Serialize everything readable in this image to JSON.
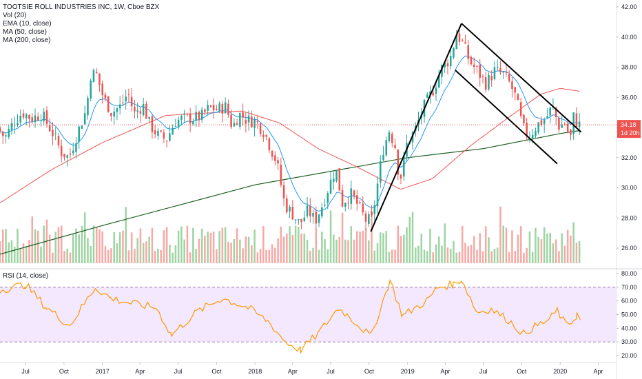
{
  "chart_data": [
    {
      "type": "candlestick",
      "title": "TOOTSIE ROLL INDUSTRIES INC, 1W, Cboe BZX",
      "legend": [
        "Vol (20)",
        "EMA (10, close)",
        "MA (50, close)",
        "MA (200, close)"
      ],
      "price_axis": {
        "ticks": [
          "42.00",
          "40.00",
          "38.00",
          "36.00",
          "34.00",
          "32.00",
          "30.00",
          "28.00",
          "26.00"
        ],
        "range": [
          25.0,
          42.0
        ],
        "last_price": "34.18",
        "countdown": "1d 20h"
      },
      "time_axis": {
        "ticks": [
          "Jul",
          "Oct",
          "2017",
          "Apr",
          "Jul",
          "Oct",
          "2018",
          "Apr",
          "Jul",
          "Oct",
          "2019",
          "Apr",
          "Jul",
          "Oct",
          "2020",
          "Apr"
        ],
        "range": [
          "2016-05",
          "2020-04"
        ]
      },
      "colors": {
        "up": "#26a69a",
        "down": "#ef5350",
        "ema": "#2196f3",
        "ma50": "#ef5350",
        "ma200": "#1b5e20",
        "vol_up": "#9fd4a3",
        "vol_down": "#f7a9a6"
      },
      "price_keypoints": [
        [
          "2016-05-01",
          34.0
        ],
        [
          "2016-05-20",
          33.3
        ],
        [
          "2016-06-10",
          34.4
        ],
        [
          "2016-07-01",
          35.0
        ],
        [
          "2016-07-22",
          34.6
        ],
        [
          "2016-08-15",
          34.9
        ],
        [
          "2016-09-10",
          33.7
        ],
        [
          "2016-10-01",
          32.4
        ],
        [
          "2016-10-20",
          32.0
        ],
        [
          "2016-11-10",
          33.7
        ],
        [
          "2016-12-01",
          35.2
        ],
        [
          "2016-12-10",
          37.5
        ],
        [
          "2016-12-24",
          37.6
        ],
        [
          "2017-01-10",
          36.0
        ],
        [
          "2017-01-30",
          35.0
        ],
        [
          "2017-02-20",
          35.4
        ],
        [
          "2017-03-10",
          36.3
        ],
        [
          "2017-03-25",
          34.9
        ],
        [
          "2017-04-15",
          35.5
        ],
        [
          "2017-05-01",
          34.2
        ],
        [
          "2017-05-20",
          33.5
        ],
        [
          "2017-06-10",
          33.2
        ],
        [
          "2017-07-01",
          34.4
        ],
        [
          "2017-07-20",
          34.6
        ],
        [
          "2017-08-10",
          34.6
        ],
        [
          "2017-09-01",
          34.7
        ],
        [
          "2017-09-20",
          35.3
        ],
        [
          "2017-10-10",
          35.2
        ],
        [
          "2017-10-30",
          35.4
        ],
        [
          "2017-11-15",
          34.0
        ],
        [
          "2017-12-01",
          34.9
        ],
        [
          "2017-12-20",
          34.5
        ],
        [
          "2018-01-10",
          34.4
        ],
        [
          "2018-01-30",
          33.7
        ],
        [
          "2018-02-15",
          32.6
        ],
        [
          "2018-03-01",
          31.7
        ],
        [
          "2018-03-20",
          28.9
        ],
        [
          "2018-04-10",
          28.2
        ],
        [
          "2018-04-25",
          27.6
        ],
        [
          "2018-05-15",
          28.5
        ],
        [
          "2018-06-01",
          27.8
        ],
        [
          "2018-06-20",
          29.0
        ],
        [
          "2018-07-05",
          30.2
        ],
        [
          "2018-07-20",
          31.3
        ],
        [
          "2018-08-05",
          29.0
        ],
        [
          "2018-08-25",
          29.6
        ],
        [
          "2018-09-10",
          28.9
        ],
        [
          "2018-10-01",
          27.8
        ],
        [
          "2018-10-15",
          27.9
        ],
        [
          "2018-10-25",
          29.7
        ],
        [
          "2018-11-10",
          32.5
        ],
        [
          "2018-11-25",
          33.8
        ],
        [
          "2018-12-10",
          32.7
        ],
        [
          "2018-12-20",
          30.3
        ],
        [
          "2019-01-05",
          32.8
        ],
        [
          "2019-01-25",
          33.8
        ],
        [
          "2019-02-15",
          35.3
        ],
        [
          "2019-03-10",
          36.5
        ],
        [
          "2019-03-30",
          37.9
        ],
        [
          "2019-04-20",
          38.6
        ],
        [
          "2019-05-05",
          40.2
        ],
        [
          "2019-05-20",
          39.6
        ],
        [
          "2019-06-05",
          38.4
        ],
        [
          "2019-06-25",
          37.7
        ],
        [
          "2019-07-15",
          36.9
        ],
        [
          "2019-08-05",
          37.8
        ],
        [
          "2019-08-25",
          37.5
        ],
        [
          "2019-09-10",
          36.9
        ],
        [
          "2019-09-25",
          35.9
        ],
        [
          "2019-10-10",
          34.0
        ],
        [
          "2019-10-25",
          33.4
        ],
        [
          "2019-11-15",
          34.2
        ],
        [
          "2019-12-05",
          34.6
        ],
        [
          "2019-12-20",
          35.4
        ],
        [
          "2020-01-05",
          34.1
        ],
        [
          "2020-01-20",
          34.3
        ],
        [
          "2020-02-01",
          33.2
        ],
        [
          "2020-02-10",
          34.9
        ],
        [
          "2020-02-18",
          34.18
        ]
      ],
      "ma200_keypoints": [
        [
          "2016-05-01",
          25.6
        ],
        [
          "2017-01-01",
          27.5
        ],
        [
          "2018-01-01",
          30.2
        ],
        [
          "2019-01-01",
          32.0
        ],
        [
          "2019-07-01",
          32.6
        ],
        [
          "2020-01-01",
          33.6
        ],
        [
          "2020-02-18",
          33.8
        ]
      ],
      "ma50_keypoints": [
        [
          "2016-05-01",
          29.0
        ],
        [
          "2016-09-01",
          31.2
        ],
        [
          "2017-01-01",
          33.0
        ],
        [
          "2017-06-01",
          34.8
        ],
        [
          "2017-12-01",
          35.1
        ],
        [
          "2018-03-01",
          34.3
        ],
        [
          "2018-06-01",
          32.6
        ],
        [
          "2018-09-01",
          31.4
        ],
        [
          "2018-12-15",
          29.9
        ],
        [
          "2019-03-01",
          30.6
        ],
        [
          "2019-06-01",
          32.8
        ],
        [
          "2019-09-01",
          34.7
        ],
        [
          "2019-11-15",
          36.2
        ],
        [
          "2020-01-01",
          36.6
        ],
        [
          "2020-02-18",
          36.4
        ]
      ],
      "trendlines": [
        {
          "name": "rising",
          "from": [
            "2018-10-05",
            27.1
          ],
          "to": [
            "2019-05-10",
            40.9
          ]
        },
        {
          "name": "upper-channel",
          "from": [
            "2019-05-10",
            40.9
          ],
          "to": [
            "2020-02-20",
            33.7
          ]
        },
        {
          "name": "lower-channel",
          "from": [
            "2019-04-25",
            37.8
          ],
          "to": [
            "2019-12-25",
            31.6
          ]
        }
      ]
    },
    {
      "type": "line",
      "title": "RSI (14, close)",
      "y_axis": {
        "ticks": [
          "80.00",
          "70.00",
          "60.00",
          "50.00",
          "40.00",
          "30.00",
          "20.00"
        ],
        "range": [
          18,
          82
        ]
      },
      "band": [
        30,
        70
      ],
      "color": "#ff9800",
      "x": [
        "2016-05-01",
        "2016-07-01",
        "2016-08-20",
        "2016-10-15",
        "2016-12-15",
        "2017-01-20",
        "2017-03-15",
        "2017-05-10",
        "2017-06-15",
        "2017-08-15",
        "2017-10-15",
        "2017-12-15",
        "2018-02-01",
        "2018-03-15",
        "2018-04-20",
        "2018-06-01",
        "2018-07-20",
        "2018-08-20",
        "2018-10-05",
        "2018-11-20",
        "2018-12-20",
        "2019-02-15",
        "2019-03-15",
        "2019-04-20",
        "2019-05-10",
        "2019-06-15",
        "2019-07-20",
        "2019-08-30",
        "2019-10-05",
        "2019-10-25",
        "2019-12-05",
        "2019-12-25",
        "2020-01-15",
        "2020-02-01",
        "2020-02-10",
        "2020-02-18"
      ],
      "values": [
        68,
        72,
        55,
        42,
        70,
        62,
        58,
        55,
        35,
        52,
        62,
        55,
        45,
        30,
        24,
        36,
        55,
        47,
        34,
        75,
        49,
        60,
        70,
        72,
        76,
        52,
        54,
        46,
        36,
        40,
        46,
        53,
        42,
        46,
        50,
        46
      ]
    }
  ]
}
